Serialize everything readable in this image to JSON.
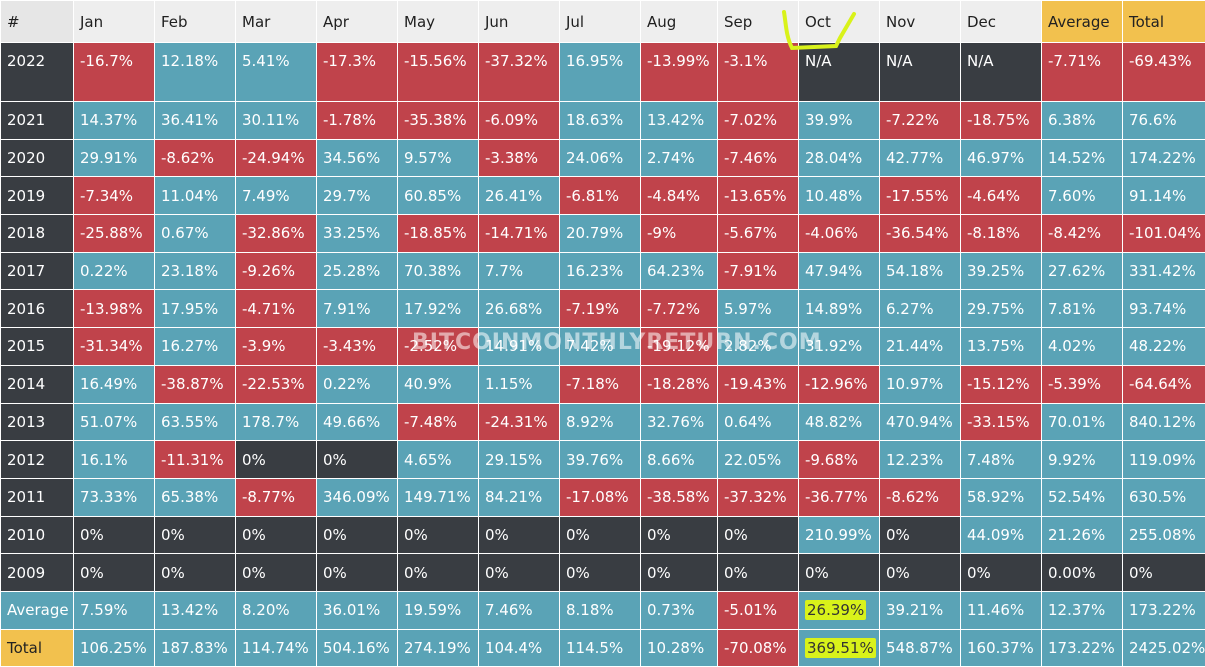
{
  "chart_data": {
    "type": "table",
    "columns": [
      "#",
      "Jan",
      "Feb",
      "Mar",
      "Apr",
      "May",
      "Jun",
      "Jul",
      "Aug",
      "Sep",
      "Oct",
      "Nov",
      "Dec",
      "Average",
      "Total"
    ],
    "rows": [
      [
        "2022",
        "-16.7%",
        "12.18%",
        "5.41%",
        "-17.3%",
        "-15.56%",
        "-37.32%",
        "16.95%",
        "-13.99%",
        "-3.1%",
        "N/A",
        "N/A",
        "N/A",
        "-7.71%",
        "-69.43%"
      ],
      [
        "2021",
        "14.37%",
        "36.41%",
        "30.11%",
        "-1.78%",
        "-35.38%",
        "-6.09%",
        "18.63%",
        "13.42%",
        "-7.02%",
        "39.9%",
        "-7.22%",
        "-18.75%",
        "6.38%",
        "76.6%"
      ],
      [
        "2020",
        "29.91%",
        "-8.62%",
        "-24.94%",
        "34.56%",
        "9.57%",
        "-3.38%",
        "24.06%",
        "2.74%",
        "-7.46%",
        "28.04%",
        "42.77%",
        "46.97%",
        "14.52%",
        "174.22%"
      ],
      [
        "2019",
        "-7.34%",
        "11.04%",
        "7.49%",
        "29.7%",
        "60.85%",
        "26.41%",
        "-6.81%",
        "-4.84%",
        "-13.65%",
        "10.48%",
        "-17.55%",
        "-4.64%",
        "7.60%",
        "91.14%"
      ],
      [
        "2018",
        "-25.88%",
        "0.67%",
        "-32.86%",
        "33.25%",
        "-18.85%",
        "-14.71%",
        "20.79%",
        "-9%",
        "-5.67%",
        "-4.06%",
        "-36.54%",
        "-8.18%",
        "-8.42%",
        "-101.04%"
      ],
      [
        "2017",
        "0.22%",
        "23.18%",
        "-9.26%",
        "25.28%",
        "70.38%",
        "7.7%",
        "16.23%",
        "64.23%",
        "-7.91%",
        "47.94%",
        "54.18%",
        "39.25%",
        "27.62%",
        "331.42%"
      ],
      [
        "2016",
        "-13.98%",
        "17.95%",
        "-4.71%",
        "7.91%",
        "17.92%",
        "26.68%",
        "-7.19%",
        "-7.72%",
        "5.97%",
        "14.89%",
        "6.27%",
        "29.75%",
        "7.81%",
        "93.74%"
      ],
      [
        "2015",
        "-31.34%",
        "16.27%",
        "-3.9%",
        "-3.43%",
        "-2.52%",
        "14.91%",
        "7.42%",
        "-19.12%",
        "2.82%",
        "31.92%",
        "21.44%",
        "13.75%",
        "4.02%",
        "48.22%"
      ],
      [
        "2014",
        "16.49%",
        "-38.87%",
        "-22.53%",
        "0.22%",
        "40.9%",
        "1.15%",
        "-7.18%",
        "-18.28%",
        "-19.43%",
        "-12.96%",
        "10.97%",
        "-15.12%",
        "-5.39%",
        "-64.64%"
      ],
      [
        "2013",
        "51.07%",
        "63.55%",
        "178.7%",
        "49.66%",
        "-7.48%",
        "-24.31%",
        "8.92%",
        "32.76%",
        "0.64%",
        "48.82%",
        "470.94%",
        "-33.15%",
        "70.01%",
        "840.12%"
      ],
      [
        "2012",
        "16.1%",
        "-11.31%",
        "0%",
        "0%",
        "4.65%",
        "29.15%",
        "39.76%",
        "8.66%",
        "22.05%",
        "-9.68%",
        "12.23%",
        "7.48%",
        "9.92%",
        "119.09%"
      ],
      [
        "2011",
        "73.33%",
        "65.38%",
        "-8.77%",
        "346.09%",
        "149.71%",
        "84.21%",
        "-17.08%",
        "-38.58%",
        "-37.32%",
        "-36.77%",
        "-8.62%",
        "58.92%",
        "52.54%",
        "630.5%"
      ],
      [
        "2010",
        "0%",
        "0%",
        "0%",
        "0%",
        "0%",
        "0%",
        "0%",
        "0%",
        "0%",
        "210.99%",
        "0%",
        "44.09%",
        "21.26%",
        "255.08%"
      ],
      [
        "2009",
        "0%",
        "0%",
        "0%",
        "0%",
        "0%",
        "0%",
        "0%",
        "0%",
        "0%",
        "0%",
        "0%",
        "0%",
        "0.00%",
        "0%"
      ]
    ],
    "summary_rows": [
      [
        "Average",
        "7.59%",
        "13.42%",
        "8.20%",
        "36.01%",
        "19.59%",
        "7.46%",
        "8.18%",
        "0.73%",
        "-5.01%",
        "26.39%",
        "39.21%",
        "11.46%",
        "12.37%",
        "173.22%"
      ],
      [
        "Total",
        "106.25%",
        "187.83%",
        "114.74%",
        "504.16%",
        "274.19%",
        "104.4%",
        "114.5%",
        "10.28%",
        "-70.08%",
        "369.51%",
        "548.87%",
        "160.37%",
        "173.22%",
        "2425.02%"
      ]
    ],
    "highlighted": {
      "column": "Oct",
      "cells": [
        "Average:Oct",
        "Total:Oct"
      ]
    },
    "colors": {
      "positive": "#5aa3b6",
      "negative": "#c0434b",
      "neutral": "#393d42",
      "header_accent": "#f2c14e",
      "highlight": "#d9f21a"
    }
  },
  "watermark": "BITCOINMONTHLYRETURN.COM"
}
